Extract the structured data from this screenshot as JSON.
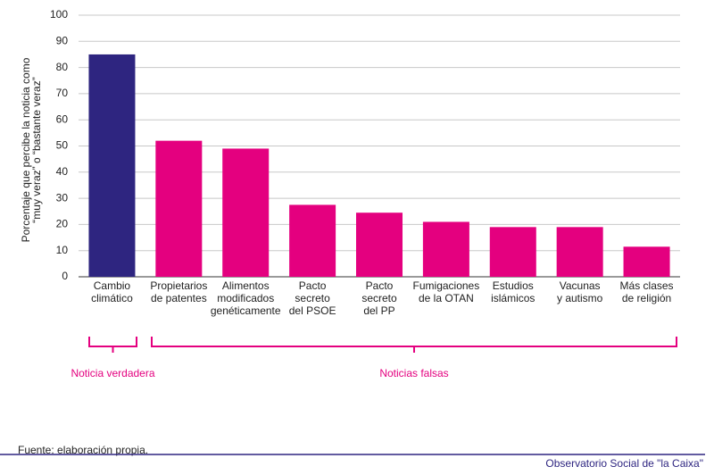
{
  "chart_data": {
    "type": "bar",
    "y_label": "Porcentaje que percibe la noticia como\n“muy veraz” o “bastante veraz”",
    "categories": [
      "Cambio\nclimático",
      "Propietarios\nde patentes",
      "Alimentos\nmodificados\ngenéticamente",
      "Pacto\nsecreto\ndel PSOE",
      "Pacto\nsecreto\ndel PP",
      "Fumigaciones\nde la OTAN",
      "Estudios\nislámicos",
      "Vacunas\ny autismo",
      "Más clases\nde religión"
    ],
    "values": [
      85,
      52,
      49,
      27.5,
      24.5,
      21,
      19,
      19,
      11.5
    ],
    "colors": [
      "#2e2580",
      "#e4007f",
      "#e4007f",
      "#e4007f",
      "#e4007f",
      "#e4007f",
      "#e4007f",
      "#e4007f",
      "#e4007f"
    ],
    "ylim": [
      0,
      100
    ],
    "yticks": [
      0,
      10,
      20,
      30,
      40,
      50,
      60,
      70,
      80,
      90,
      100
    ],
    "grid": true,
    "groups": [
      "Noticia verdadera",
      "Noticias falsas"
    ],
    "source": "Fuente: elaboración propia.",
    "publisher": "Observatorio Social de \"la Caixa\""
  }
}
